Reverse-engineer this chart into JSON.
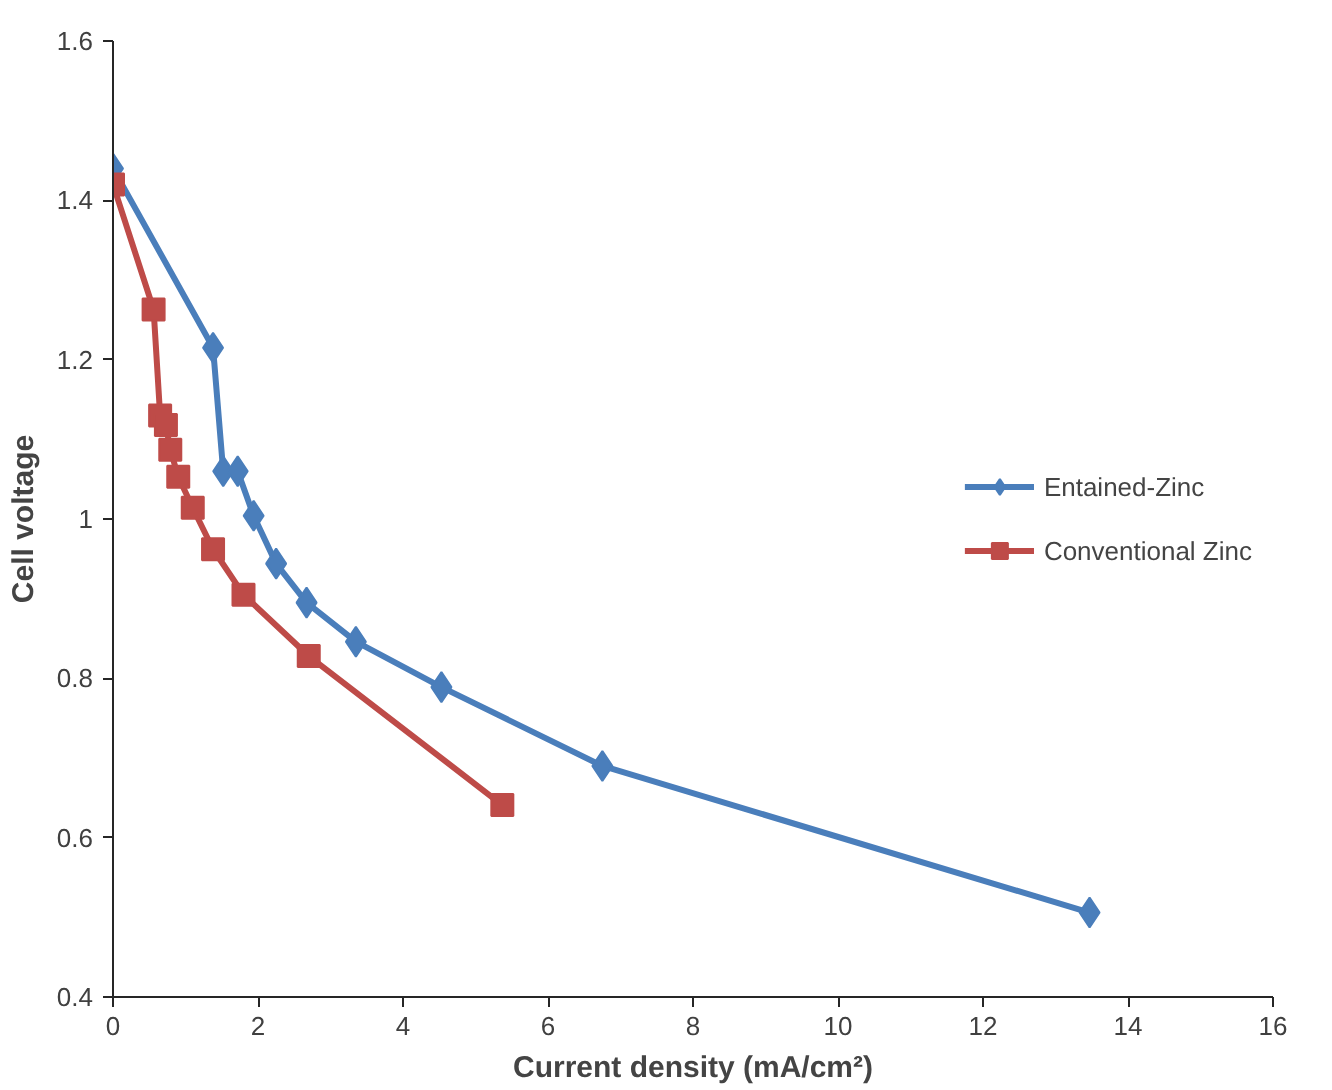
{
  "chart_data": {
    "type": "line",
    "xlabel": "Current density (mA/cm²)",
    "ylabel": "Cell voltage",
    "xlim": [
      0,
      16
    ],
    "xticks": [
      0,
      2,
      4,
      6,
      8,
      10,
      12,
      14,
      16
    ],
    "ylim": [
      0.4,
      1.6
    ],
    "yticks": [
      0.4,
      0.6,
      0.8,
      1,
      1.2,
      1.4,
      1.6
    ],
    "grid": false,
    "legend": "right",
    "series": [
      {
        "name": "Entained-Zinc",
        "color": "#4a7ebb",
        "marker": "diamond",
        "x": [
          0,
          1.38,
          1.52,
          1.72,
          1.94,
          2.25,
          2.67,
          3.35,
          4.53,
          6.75,
          13.47
        ],
        "values": [
          1.44,
          1.215,
          1.06,
          1.06,
          1.004,
          0.944,
          0.895,
          0.846,
          0.789,
          0.69,
          0.506
        ]
      },
      {
        "name": "Conventional Zinc",
        "color": "#be4b48",
        "marker": "square",
        "x": [
          0,
          0.56,
          0.65,
          0.73,
          0.79,
          0.9,
          1.1,
          1.38,
          1.8,
          2.7,
          5.37
        ],
        "values": [
          1.42,
          1.263,
          1.13,
          1.118,
          1.087,
          1.053,
          1.014,
          0.962,
          0.905,
          0.828,
          0.641
        ]
      }
    ]
  }
}
